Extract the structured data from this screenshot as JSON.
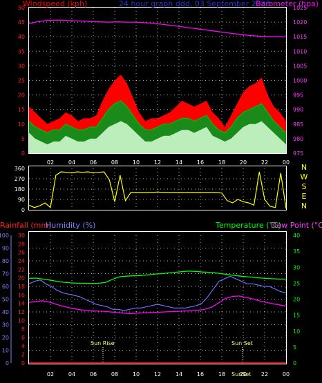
{
  "header": {
    "windspeed_label": "Windspeed (kph)",
    "center_title": "24 hour graph ddd, 03 September 2023",
    "barometer_label": "Barometer (hpa)"
  },
  "mid_header": {
    "rainfall_label": "Rainfall (mm)",
    "humidity_label": "Humidity (%)",
    "temperature_label": "Temperature (°C)",
    "dewpoint_label": "Dew Point (°C)"
  },
  "annotations": {
    "sun_rise": "Sun Rise",
    "sun_set": "Sun Set",
    "sun_set_axis": "SunSet"
  },
  "colors": {
    "windspeed": "#ff0000",
    "wind_avg": "#00c000",
    "wind_light": "#d8ffd8",
    "barometer": "#ff00ff",
    "direction": "#ffff00",
    "humidity": "#7070ff",
    "temperature": "#00ff00",
    "dewpoint": "#ff00ff",
    "rainfall": "#ff0000",
    "grid": "#ffffff"
  },
  "chart_data": [
    {
      "type": "area",
      "x_tick_labels": [
        "02",
        "04",
        "06",
        "08",
        "10",
        "12",
        "14",
        "16",
        "18",
        "20",
        "22",
        "00"
      ],
      "y_left_ticks": [
        0,
        5,
        10,
        15,
        20,
        25,
        30,
        35,
        40,
        45,
        50
      ],
      "y_right_ticks": [
        975,
        980,
        985,
        990,
        995,
        1000,
        1005,
        1010,
        1015,
        1020,
        1025
      ],
      "y_left_range": [
        0,
        50
      ],
      "y_right_range": [
        975,
        1025
      ],
      "grid": true,
      "series": [
        {
          "name": "Windspeed (kph)",
          "key": "gust",
          "values": [
            16,
            14,
            12,
            10,
            11,
            12,
            14,
            13,
            11,
            12,
            12,
            13,
            18,
            22,
            25,
            27,
            24,
            19,
            14,
            11,
            12,
            12,
            13,
            14,
            16,
            18,
            17,
            16,
            17,
            18,
            14,
            12,
            9,
            13,
            17,
            21,
            23,
            24,
            26,
            20,
            16,
            14,
            11
          ],
          "axis": "left"
        },
        {
          "name": "",
          "key": "avg",
          "values": [
            11,
            9,
            8,
            7,
            8,
            8,
            10,
            9,
            8,
            8,
            9,
            9,
            12,
            15,
            17,
            18,
            16,
            13,
            10,
            8,
            8,
            9,
            10,
            10,
            11,
            12,
            12,
            11,
            12,
            13,
            10,
            8,
            7,
            9,
            12,
            14,
            15,
            16,
            17,
            14,
            11,
            9,
            7
          ],
          "axis": "left"
        },
        {
          "name": "",
          "key": "light",
          "values": [
            7,
            5,
            4,
            3,
            4,
            4,
            6,
            5,
            4,
            4,
            5,
            5,
            7,
            9,
            10,
            11,
            10,
            8,
            6,
            4,
            4,
            5,
            6,
            6,
            7,
            8,
            8,
            7,
            8,
            9,
            6,
            5,
            4,
            5,
            7,
            9,
            10,
            10,
            11,
            9,
            7,
            5,
            3
          ],
          "axis": "left"
        },
        {
          "name": "Barometer (hpa)",
          "key": "baro",
          "values": [
            1019.5,
            1020.2,
            1020.6,
            1020.7,
            1020.6,
            1020.5,
            1020.4,
            1020.2,
            1020.1,
            1020.0,
            1020.1,
            1020.0,
            1020.0,
            1019.8,
            1019.6,
            1019.3,
            1018.9,
            1018.5,
            1018.1,
            1017.7,
            1017.3,
            1016.9,
            1016.5,
            1016.1,
            1015.7,
            1015.4,
            1015.2,
            1015.0,
            1015.0,
            1014.9
          ],
          "axis": "right"
        }
      ]
    },
    {
      "type": "line",
      "y_left_ticks": [
        0,
        90,
        180,
        270,
        360
      ],
      "y_left_range": [
        0,
        360
      ],
      "y_right_ticks": [
        "N",
        "W",
        "S",
        "E",
        "N"
      ],
      "grid": true,
      "series": [
        {
          "name": "",
          "key": "dir",
          "values": [
            40,
            20,
            35,
            60,
            20,
            300,
            330,
            325,
            320,
            330,
            325,
            330,
            320,
            325,
            330,
            260,
            70,
            300,
            80,
            150,
            150,
            150,
            150,
            150,
            155,
            150,
            150,
            150,
            150,
            150,
            150,
            150,
            150,
            150,
            150,
            150,
            145,
            80,
            60,
            90,
            70,
            60,
            40,
            330,
            90,
            30,
            20,
            320,
            10
          ],
          "axis": "left"
        }
      ]
    },
    {
      "type": "line",
      "x_tick_labels": [
        "02",
        "04",
        "06",
        "08",
        "10",
        "12",
        "14",
        "16",
        "18",
        "20",
        "22",
        "00"
      ],
      "y_humidity_ticks": [
        0,
        10,
        20,
        30,
        40,
        50,
        60,
        70,
        80,
        90,
        100
      ],
      "y_rain_ticks": [
        0,
        2,
        4,
        6,
        8,
        10,
        12,
        14,
        16,
        18,
        20,
        22,
        24,
        26,
        28,
        30
      ],
      "y_right_ticks": [
        0,
        5,
        10,
        15,
        20,
        25,
        30,
        35,
        40
      ],
      "y_humidity_range": [
        0,
        100
      ],
      "y_right_range": [
        0,
        40
      ],
      "grid": true,
      "series": [
        {
          "name": "Humidity (%)",
          "key": "hum",
          "values": [
            62,
            64,
            65,
            62,
            60,
            57,
            55,
            54,
            53,
            52,
            50,
            48,
            46,
            45,
            44,
            42,
            42,
            41,
            42,
            43,
            43,
            44,
            45,
            46,
            45,
            44,
            43,
            43,
            43,
            44,
            45,
            47,
            52,
            58,
            64,
            66,
            68,
            66,
            64,
            62,
            62,
            61,
            60,
            60,
            58,
            56,
            55
          ],
          "axis": "left"
        },
        {
          "name": "Temperature (°C)",
          "key": "temp",
          "values": [
            26.5,
            26.6,
            26.3,
            26.0,
            25.6,
            25.3,
            25.1,
            25.0,
            25.0,
            24.9,
            25.0,
            25.2,
            26.2,
            27.0,
            27.2,
            27.3,
            27.4,
            27.6,
            27.8,
            28.0,
            28.2,
            28.4,
            28.6,
            28.8,
            28.7,
            28.5,
            28.4,
            28.2,
            27.9,
            27.6,
            27.3,
            27.1,
            26.9,
            26.7,
            26.5,
            26.4,
            26.3,
            26.3
          ],
          "axis": "right"
        },
        {
          "name": "Dew Point (°C)",
          "key": "dew",
          "values": [
            19.0,
            19.2,
            19.5,
            19.1,
            18.4,
            17.8,
            17.3,
            16.9,
            16.5,
            16.4,
            16.3,
            16.2,
            16.0,
            15.8,
            15.6,
            15.5,
            15.6,
            15.7,
            15.8,
            15.9,
            16.0,
            16.1,
            16.2,
            16.3,
            16.4,
            16.5,
            16.8,
            17.5,
            18.8,
            20.2,
            20.8,
            21.0,
            20.6,
            20.1,
            19.5,
            19.0,
            18.6,
            18.2,
            17.8
          ],
          "axis": "right"
        },
        {
          "name": "Rainfall (mm)",
          "key": "rain",
          "values": [
            0,
            0,
            0,
            0,
            0,
            0,
            0,
            0,
            0,
            0,
            0,
            0,
            0
          ],
          "axis": "rain"
        }
      ]
    }
  ]
}
